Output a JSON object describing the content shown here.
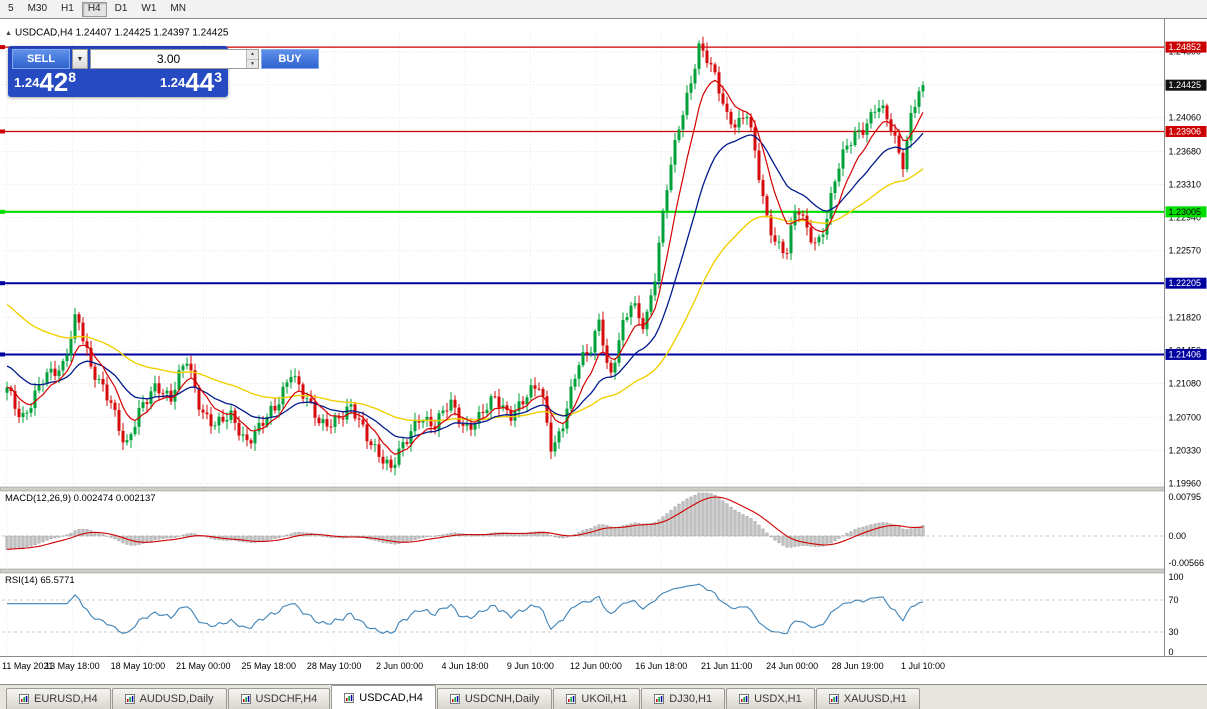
{
  "toolbar": {
    "timeframes": [
      {
        "label": "5",
        "active": false
      },
      {
        "label": "M30",
        "active": false
      },
      {
        "label": "H1",
        "active": false
      },
      {
        "label": "H4",
        "active": true
      },
      {
        "label": "D1",
        "active": false
      },
      {
        "label": "W1",
        "active": false
      },
      {
        "label": "MN",
        "active": false
      }
    ]
  },
  "chart_header": {
    "marker": "▲",
    "text": "USDCAD,H4 1.24407 1.24425 1.24397 1.24425"
  },
  "trade_panel": {
    "sell_label": "SELL",
    "buy_label": "BUY",
    "lot_value": "3.00",
    "dropdown_glyph": "▼",
    "bid_prefix": "1.24",
    "bid_big": "42",
    "bid_sup": "8",
    "ask_prefix": "1.24",
    "ask_big": "44",
    "ask_sup": "3",
    "spin_up": "▲",
    "spin_down": "▼"
  },
  "tabs": {
    "items": [
      {
        "label": "EURUSD,H4",
        "active": false
      },
      {
        "label": "AUDUSD,Daily",
        "active": false
      },
      {
        "label": "USDCHF,H4",
        "active": false
      },
      {
        "label": "USDCAD,H4",
        "active": true
      },
      {
        "label": "USDCNH,Daily",
        "active": false
      },
      {
        "label": "UKOil,H1",
        "active": false
      },
      {
        "label": "DJ30,H1",
        "active": false
      },
      {
        "label": "USDX,H1",
        "active": false
      },
      {
        "label": "XAUUSD,H1",
        "active": false
      }
    ]
  },
  "chart_data": {
    "type": "candlestick",
    "symbol": "USDCAD",
    "timeframe": "H4",
    "current": {
      "open": "1.24407",
      "high": "1.24425",
      "low": "1.24397",
      "close": "1.24425"
    },
    "last_price": 1.24425,
    "y_range": {
      "max": 1.2501,
      "min": 1.1992
    },
    "grid_prices": [
      1.248,
      1.2443,
      1.2406,
      1.2368,
      1.2331,
      1.2294,
      1.2257,
      1.222,
      1.2182,
      1.2145,
      1.2108,
      1.207,
      1.2033,
      1.1996
    ],
    "levels": [
      {
        "price": 1.24852,
        "color": "#cc0000",
        "width": 1.2,
        "label": "1.24852",
        "label_bg": "#cc0000",
        "label_fg": "#ffffff"
      },
      {
        "price": 1.23906,
        "color": "#cc0000",
        "width": 1.2,
        "label": "1.23906",
        "label_bg": "#cc0000",
        "label_fg": "#ffffff"
      },
      {
        "price": 1.23005,
        "color": "#00dd00",
        "width": 2.2,
        "label": "1.23005",
        "label_bg": "#00dd00",
        "label_fg": "#000000"
      },
      {
        "price": 1.22205,
        "color": "#0000a0",
        "width": 2,
        "label": "1.22205",
        "label_bg": "#0000a0",
        "label_fg": "#ffffff"
      },
      {
        "price": 1.21406,
        "color": "#0000a0",
        "width": 2,
        "label": "1.21406",
        "label_bg": "#0000a0",
        "label_fg": "#ffffff"
      }
    ],
    "current_tag": {
      "label": "1.24425",
      "bg": "#111111",
      "fg": "#ffffff"
    },
    "candle_colors": {
      "up": "#00a13a",
      "down": "#d60b0b"
    },
    "ma_colors": {
      "fast": "#d60000",
      "mid": "#001a8c",
      "slow": "#f0d000"
    },
    "x_labels": [
      "11 May 2021",
      "13 May 18:00",
      "18 May 10:00",
      "21 May 00:00",
      "25 May 18:00",
      "28 May 10:00",
      "2 Jun 00:00",
      "4 Jun 18:00",
      "9 Jun 10:00",
      "12 Jun 00:00",
      "16 Jun 18:00",
      "21 Jun 11:00",
      "24 Jun 00:00",
      "28 Jun 19:00",
      "1 Jul 10:00"
    ],
    "anchors": [
      [
        0,
        1.21
      ],
      [
        0.016,
        1.207
      ],
      [
        0.038,
        1.211
      ],
      [
        0.06,
        1.2125
      ],
      [
        0.076,
        1.219
      ],
      [
        0.092,
        1.212
      ],
      [
        0.114,
        1.209
      ],
      [
        0.13,
        1.2035
      ],
      [
        0.147,
        1.208
      ],
      [
        0.163,
        1.211
      ],
      [
        0.179,
        1.209
      ],
      [
        0.196,
        1.2135
      ],
      [
        0.212,
        1.208
      ],
      [
        0.228,
        1.206
      ],
      [
        0.245,
        1.207
      ],
      [
        0.261,
        1.2045
      ],
      [
        0.277,
        1.206
      ],
      [
        0.294,
        1.208
      ],
      [
        0.31,
        1.2125
      ],
      [
        0.326,
        1.209
      ],
      [
        0.342,
        1.206
      ],
      [
        0.359,
        1.207
      ],
      [
        0.375,
        1.208
      ],
      [
        0.391,
        1.205
      ],
      [
        0.408,
        1.203
      ],
      [
        0.419,
        1.2012
      ],
      [
        0.435,
        1.204
      ],
      [
        0.451,
        1.2075
      ],
      [
        0.467,
        1.206
      ],
      [
        0.484,
        1.2085
      ],
      [
        0.5,
        1.206
      ],
      [
        0.516,
        1.207
      ],
      [
        0.533,
        1.209
      ],
      [
        0.549,
        1.2075
      ],
      [
        0.565,
        1.209
      ],
      [
        0.582,
        1.2105
      ],
      [
        0.595,
        1.2035
      ],
      [
        0.609,
        1.207
      ],
      [
        0.623,
        1.2125
      ],
      [
        0.638,
        1.215
      ],
      [
        0.647,
        1.2185
      ],
      [
        0.658,
        1.211
      ],
      [
        0.671,
        1.2165
      ],
      [
        0.682,
        1.22
      ],
      [
        0.696,
        1.2175
      ],
      [
        0.707,
        1.2225
      ],
      [
        0.721,
        1.233
      ],
      [
        0.734,
        1.24
      ],
      [
        0.747,
        1.245
      ],
      [
        0.755,
        1.2485
      ],
      [
        0.764,
        1.247
      ],
      [
        0.775,
        1.2445
      ],
      [
        0.786,
        1.241
      ],
      [
        0.797,
        1.24
      ],
      [
        0.808,
        1.241
      ],
      [
        0.819,
        1.235
      ],
      [
        0.829,
        1.2295
      ],
      [
        0.84,
        1.2268
      ],
      [
        0.851,
        1.2255
      ],
      [
        0.862,
        1.2305
      ],
      [
        0.873,
        1.228
      ],
      [
        0.884,
        1.2265
      ],
      [
        0.895,
        1.2295
      ],
      [
        0.905,
        1.234
      ],
      [
        0.916,
        1.237
      ],
      [
        0.927,
        1.239
      ],
      [
        0.938,
        1.24
      ],
      [
        0.949,
        1.242
      ],
      [
        0.96,
        1.2405
      ],
      [
        0.971,
        1.2375
      ],
      [
        0.979,
        1.2355
      ],
      [
        0.988,
        1.242
      ],
      [
        1,
        1.24425
      ]
    ],
    "macd": {
      "label": "MACD(12,26,9) 0.002474 0.002137",
      "axis_top": "0.00795",
      "axis_zero": "0.00",
      "axis_bottom": "-0.00566",
      "hist_color": "#c0c0c0",
      "hist_border": "#8f8f8f",
      "signal_color": "#d00000"
    },
    "rsi": {
      "label": "RSI(14) 65.5771",
      "axis": [
        "100",
        "70",
        "30",
        "0"
      ],
      "levels": [
        70,
        30
      ],
      "color": "#3f83b7"
    }
  }
}
